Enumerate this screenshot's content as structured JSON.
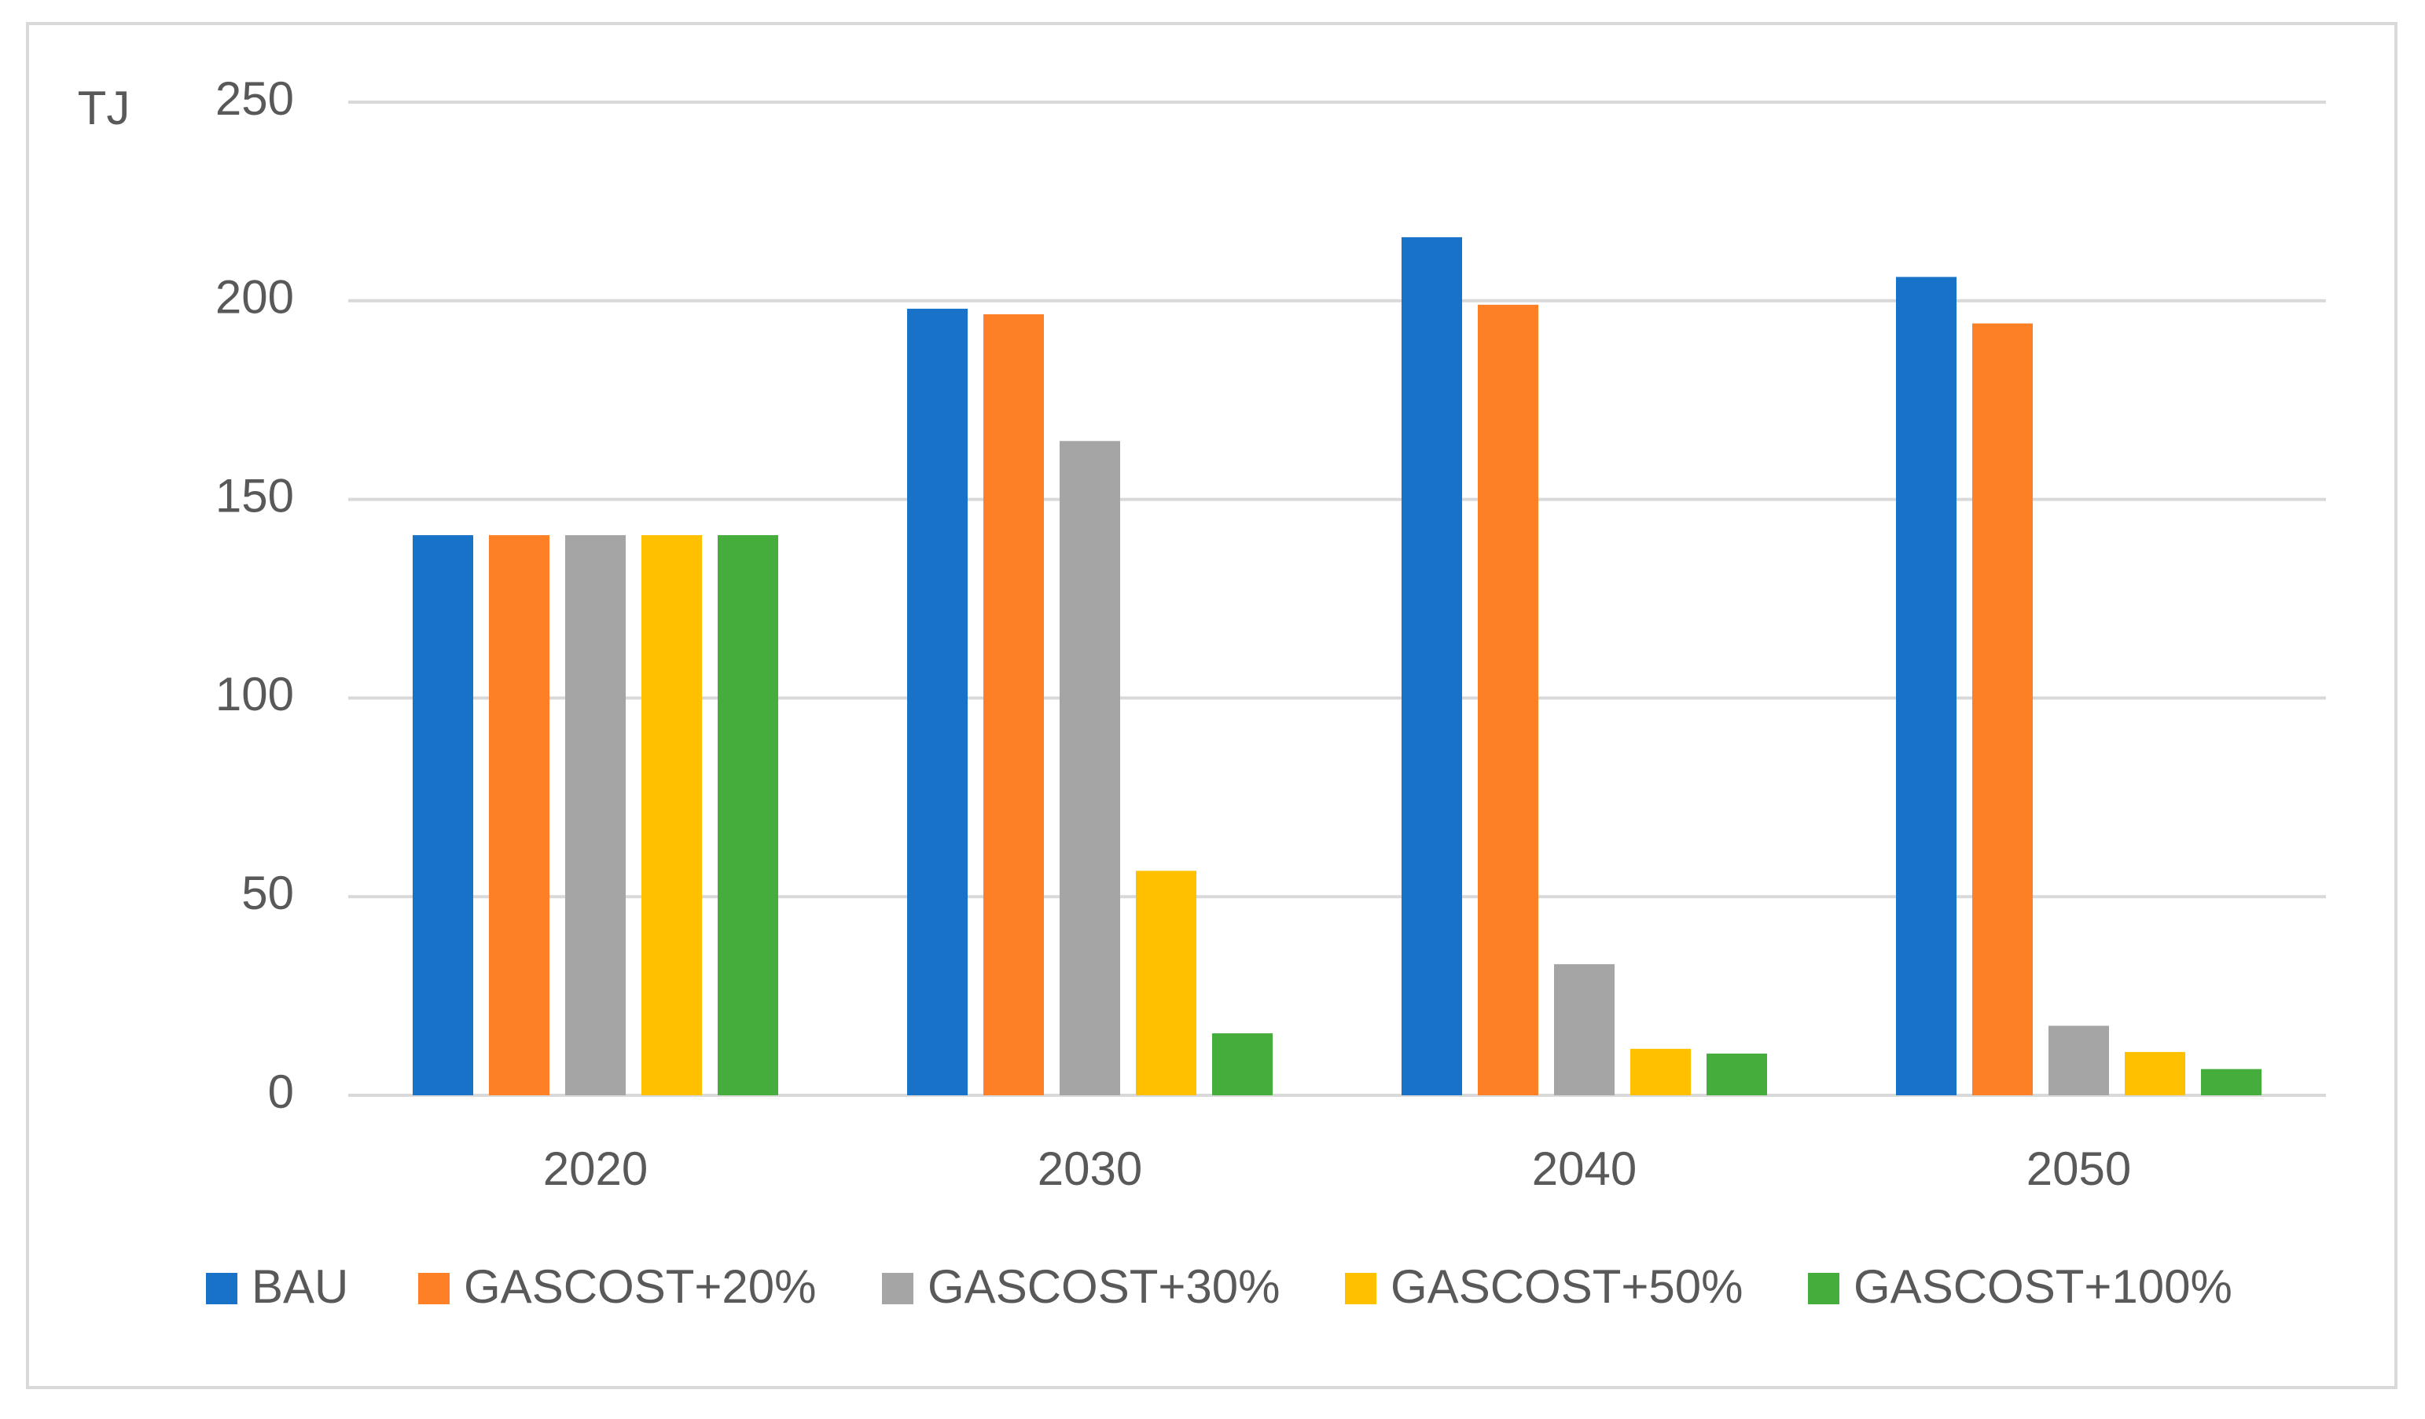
{
  "chart_data": {
    "type": "bar",
    "y_label": "TJ",
    "categories": [
      "2020",
      "2030",
      "2040",
      "2050"
    ],
    "series": [
      {
        "name": "BAU",
        "color": "#1872c7",
        "values": [
          141,
          198,
          216,
          206
        ]
      },
      {
        "name": "GASCOST+20%",
        "color": "#fd7f26",
        "values": [
          141,
          196.6,
          199,
          194.3
        ]
      },
      {
        "name": "GASCOST+30%",
        "color": "#a5a5a5",
        "values": [
          141,
          164.7,
          33,
          17.5
        ]
      },
      {
        "name": "GASCOST+50%",
        "color": "#ffc000",
        "values": [
          141,
          56.5,
          11.7,
          10.9
        ]
      },
      {
        "name": "GASCOST+100%",
        "color": "#44ad3b",
        "values": [
          141,
          15.6,
          10.5,
          6.6
        ]
      }
    ],
    "ylim": [
      0,
      250
    ],
    "yticks": [
      0,
      50,
      100,
      150,
      200,
      250
    ],
    "grid": true,
    "legend": "bottom"
  }
}
